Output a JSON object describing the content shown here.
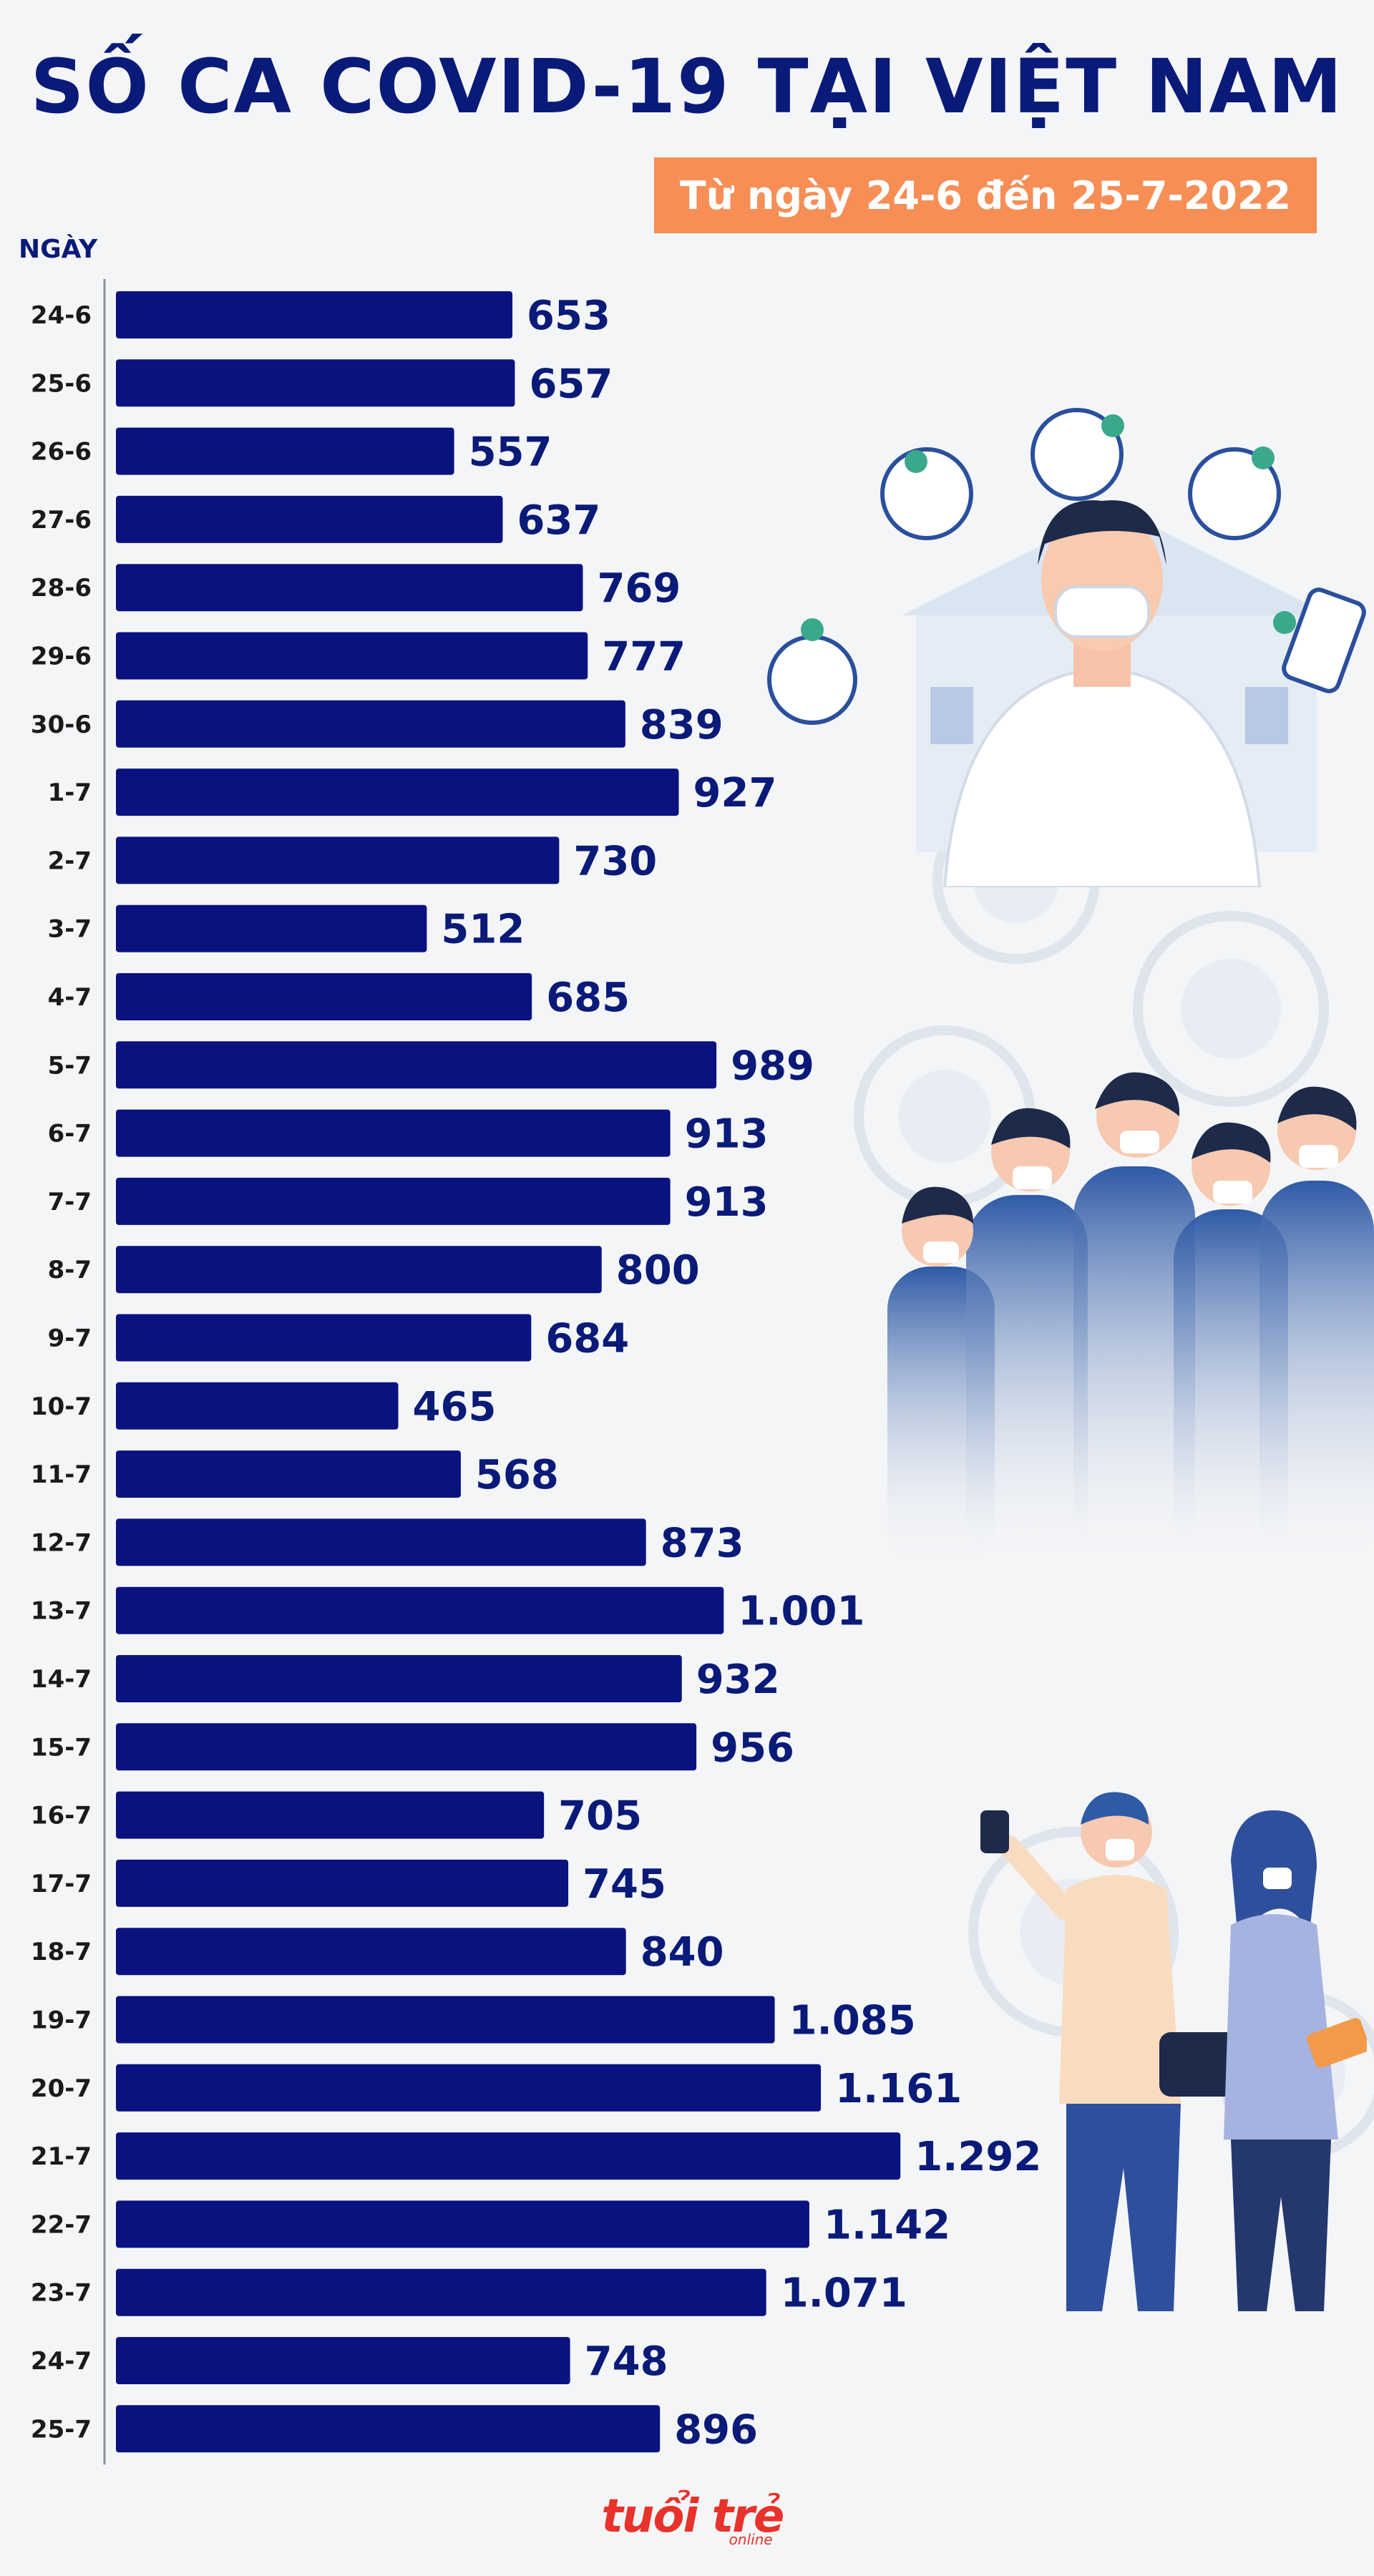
{
  "header": {
    "title": "SỐ CA COVID-19 TẠI VIỆT NAM",
    "subtitle": "Từ ngày 24-6 đến 25-7-2022"
  },
  "chart_data": {
    "type": "bar",
    "orientation": "horizontal",
    "title": "SỐ CA COVID-19 TẠI VIỆT NAM",
    "subtitle": "Từ ngày 24-6 đến 25-7-2022",
    "ylabel": "NGÀY",
    "xlabel": "",
    "xlim": [
      0,
      1300
    ],
    "bar_color": "#0a1280",
    "categories": [
      "24-6",
      "25-6",
      "26-6",
      "27-6",
      "28-6",
      "29-6",
      "30-6",
      "1-7",
      "2-7",
      "3-7",
      "4-7",
      "5-7",
      "6-7",
      "7-7",
      "8-7",
      "9-7",
      "10-7",
      "11-7",
      "12-7",
      "13-7",
      "14-7",
      "15-7",
      "16-7",
      "17-7",
      "18-7",
      "19-7",
      "20-7",
      "21-7",
      "22-7",
      "23-7",
      "24-7",
      "25-7"
    ],
    "values": [
      653,
      657,
      557,
      637,
      769,
      777,
      839,
      927,
      730,
      512,
      685,
      989,
      913,
      913,
      800,
      684,
      465,
      568,
      873,
      1001,
      932,
      956,
      705,
      745,
      840,
      1085,
      1161,
      1292,
      1142,
      1071,
      748,
      896
    ],
    "value_labels": [
      "653",
      "657",
      "557",
      "637",
      "769",
      "777",
      "839",
      "927",
      "730",
      "512",
      "685",
      "989",
      "913",
      "913",
      "800",
      "684",
      "465",
      "568",
      "873",
      "1.001",
      "932",
      "956",
      "705",
      "745",
      "840",
      "1.085",
      "1.161",
      "1.292",
      "1.142",
      "1.071",
      "748",
      "896"
    ]
  },
  "logo": {
    "main": "tuổi trẻ",
    "sub": "online"
  },
  "colors": {
    "title": "#0a1a78",
    "accent": "#f68e56",
    "bar": "#0a1280",
    "logo": "#e8322b"
  },
  "illustrations": [
    "doctor-illustration",
    "crowd-illustration",
    "couple-illustration",
    "virus-background"
  ]
}
